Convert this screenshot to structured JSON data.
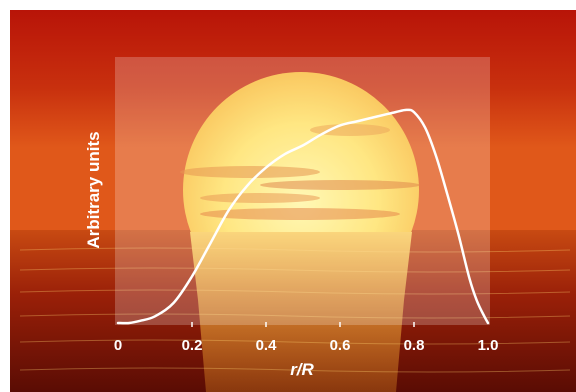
{
  "chart_data": {
    "type": "line",
    "title": "",
    "xlabel": "r/R",
    "ylabel": "Arbitrary units",
    "xlim": [
      0,
      1.0
    ],
    "ylim": [
      0,
      1.0
    ],
    "x_ticks": [
      "0",
      "0.2",
      "0.4",
      "0.6",
      "0.8",
      "1.0"
    ],
    "y_ticks_visible": false,
    "grid": false,
    "legend": "none",
    "background": "sunset photo with sun over sea",
    "line_color": "#ffffff",
    "series": [
      {
        "x": [
          0.0,
          0.03,
          0.06,
          0.1,
          0.15,
          0.2,
          0.25,
          0.3,
          0.35,
          0.4,
          0.45,
          0.5,
          0.55,
          0.6,
          0.65,
          0.7,
          0.75,
          0.78,
          0.8,
          0.83,
          0.86,
          0.89,
          0.92,
          0.95,
          0.97,
          0.99,
          1.0
        ],
        "y": [
          0.0,
          0.0,
          0.01,
          0.03,
          0.09,
          0.21,
          0.36,
          0.51,
          0.62,
          0.7,
          0.76,
          0.8,
          0.85,
          0.89,
          0.91,
          0.93,
          0.95,
          0.96,
          0.95,
          0.88,
          0.75,
          0.58,
          0.4,
          0.2,
          0.1,
          0.03,
          0.0
        ]
      }
    ]
  }
}
